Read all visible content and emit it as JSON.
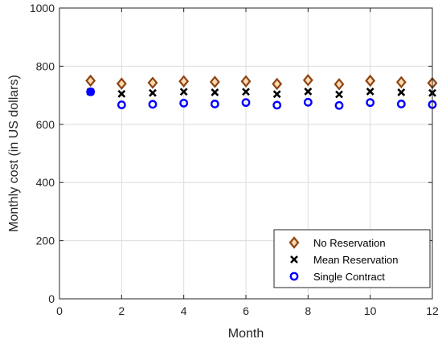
{
  "chart_data": {
    "type": "scatter",
    "title": "",
    "xlabel": "Month",
    "ylabel": "Monthly cost (in US dollars)",
    "xlim": [
      0,
      12
    ],
    "ylim": [
      0,
      1000
    ],
    "xticks": [
      "0",
      "2",
      "4",
      "6",
      "8",
      "10",
      "12"
    ],
    "yticks": [
      "0",
      "200",
      "400",
      "600",
      "800",
      "1000"
    ],
    "grid": true,
    "legend_position": "bottom-right",
    "x": [
      1,
      2,
      3,
      4,
      5,
      6,
      7,
      8,
      9,
      10,
      11,
      12
    ],
    "series": [
      {
        "name": "No Reservation",
        "marker": "diamond",
        "color": "#8B4513",
        "values": [
          750,
          740,
          743,
          748,
          746,
          748,
          739,
          752,
          738,
          750,
          745,
          742
        ]
      },
      {
        "name": "Mean Reservation",
        "marker": "x",
        "color": "#000000",
        "values": [
          712,
          705,
          708,
          712,
          710,
          712,
          704,
          713,
          703,
          713,
          710,
          708
        ]
      },
      {
        "name": "Single Contract",
        "marker": "circle",
        "color": "#0000FF",
        "values": [
          712,
          667,
          669,
          673,
          670,
          675,
          666,
          676,
          665,
          675,
          670,
          668
        ]
      }
    ]
  }
}
